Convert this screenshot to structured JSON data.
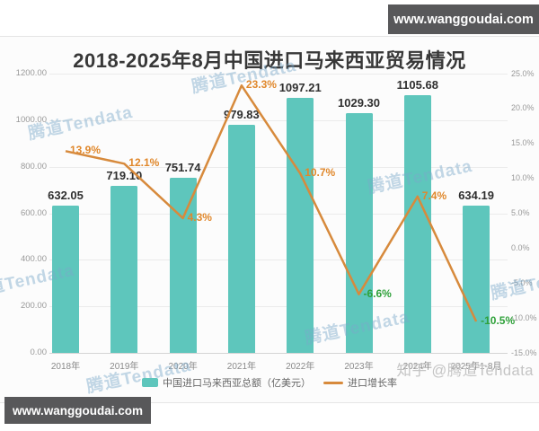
{
  "banners": {
    "top_right": "www.wanggoudai.com",
    "bottom_left": "www.wanggoudai.com"
  },
  "watermark": {
    "text": "腾道Tendata",
    "credit": "知乎 @腾道Tendata"
  },
  "chart_data": {
    "type": "bar+line",
    "title": "2018-2025年8月中国进口马来西亚贸易情况",
    "categories": [
      "2018年",
      "2019年",
      "2020年",
      "2021年",
      "2022年",
      "2023年",
      "2024年",
      "2025年1-8月"
    ],
    "series": [
      {
        "name": "中国进口马来西亚总额（亿美元）",
        "type": "bar",
        "values": [
          632.05,
          719.1,
          751.74,
          979.83,
          1097.21,
          1029.3,
          1105.68,
          634.19
        ]
      },
      {
        "name": "进口增长率",
        "type": "line",
        "unit": "%",
        "values": [
          13.9,
          12.1,
          4.3,
          23.3,
          10.7,
          -6.6,
          7.4,
          -10.5
        ]
      }
    ],
    "value_labels": [
      "632.05",
      "719.10",
      "751.74",
      "979.83",
      "1097.21",
      "1029.30",
      "1105.68",
      "634.19"
    ],
    "pct_labels": [
      "13.9%",
      "12.1%",
      "4.3%",
      "23.3%",
      "10.7%",
      "-6.6%",
      "7.4%",
      "-10.5%"
    ],
    "left_axis_ticks": [
      "1200.00",
      "1000.00",
      "800.00",
      "600.00",
      "400.00",
      "200.00",
      "0.00"
    ],
    "right_axis_ticks": [
      "25.0%",
      "20.0%",
      "15.0%",
      "10.0%",
      "5.0%",
      "0.0%",
      "-5.0%",
      "-10.0%",
      "-15.0%"
    ],
    "left_ylim": [
      0,
      1200
    ],
    "right_ylim": [
      -15,
      25
    ],
    "grid": true,
    "legend_position": "bottom",
    "legend": [
      "中国进口马来西亚总额（亿美元）",
      "进口增长率"
    ],
    "colors": {
      "bar": "#5ec6bc",
      "line": "#d78a3c",
      "pct_positive": "#e0882c",
      "pct_negative": "#2fa13a",
      "banner_bg": "#58585a",
      "banner_text": "#ffffff",
      "watermark": "rgba(122,168,202,0.45)",
      "credit": "#c4c4c4"
    }
  }
}
